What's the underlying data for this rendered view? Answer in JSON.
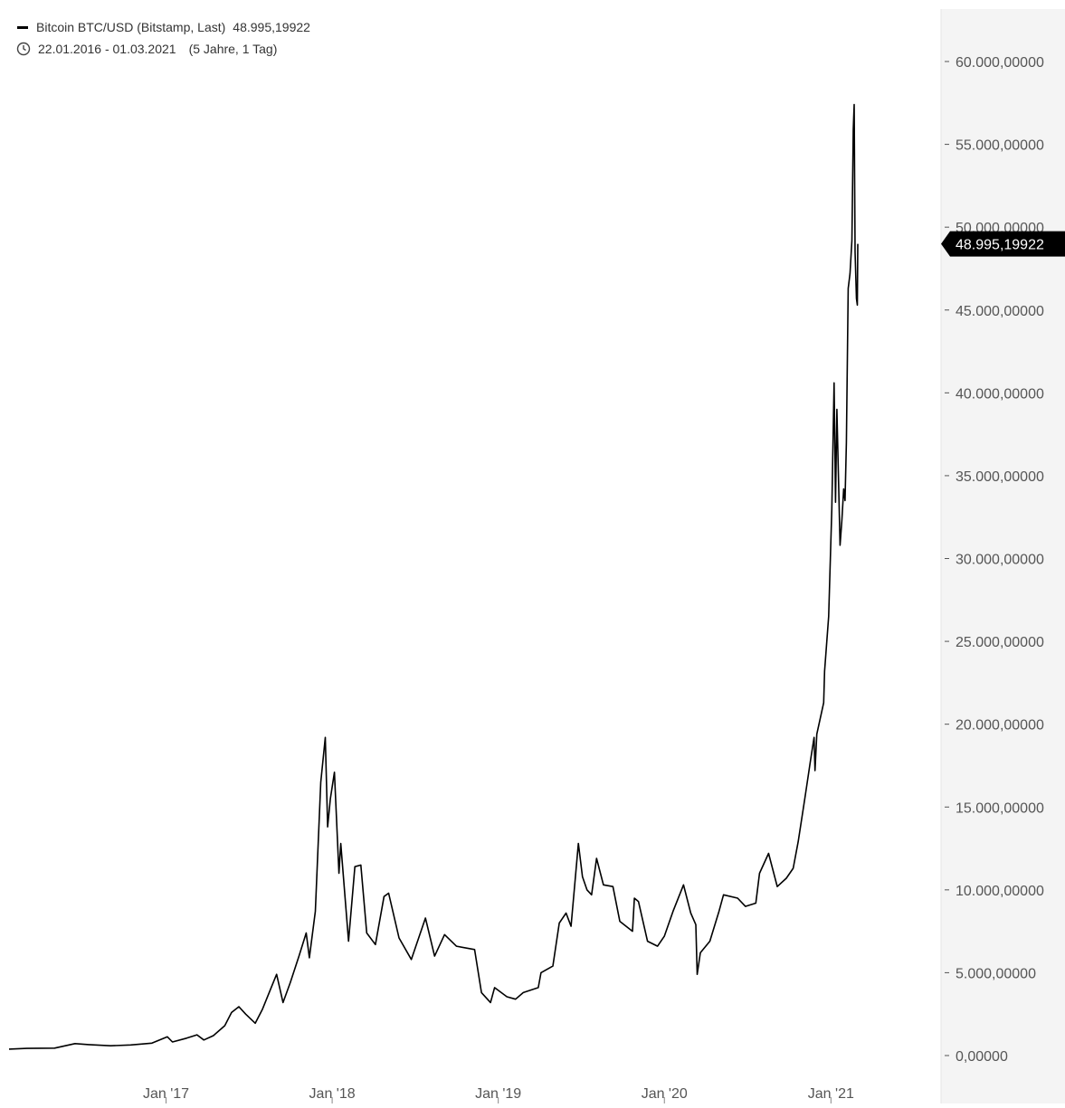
{
  "legend": {
    "series_label": "Bitcoin BTC/USD (Bitstamp, Last)",
    "series_value": "48.995,19922",
    "date_range": "22.01.2016 - 01.03.2021",
    "interval": "(5 Jahre, 1 Tag)"
  },
  "colors": {
    "line": "#000000",
    "axis_panel": "#f4f4f4",
    "tick_text": "#555555",
    "marker_bg": "#000000",
    "marker_text": "#ffffff"
  },
  "chart_data": {
    "type": "line",
    "title": "Bitcoin BTC/USD (Bitstamp, Last)",
    "xlabel": "",
    "ylabel": "",
    "xlim": [
      "2016-01-22",
      "2021-03-01"
    ],
    "ylim": [
      -3000,
      63000
    ],
    "y_ticks": [
      0,
      5000,
      10000,
      15000,
      20000,
      25000,
      30000,
      35000,
      40000,
      45000,
      50000,
      55000,
      60000
    ],
    "y_tick_labels": [
      "0,00000",
      "5.000,00000",
      "10.000,00000",
      "15.000,00000",
      "20.000,00000",
      "25.000,00000",
      "30.000,00000",
      "35.000,00000",
      "40.000,00000",
      "45.000,00000",
      "50.000,00000",
      "55.000,00000",
      "60.000,00000"
    ],
    "x_ticks": [
      "2017-01-01",
      "2018-01-01",
      "2019-01-01",
      "2020-01-01",
      "2021-01-01"
    ],
    "x_tick_labels": [
      "Jan '17",
      "Jan '18",
      "Jan '19",
      "Jan '20",
      "Jan '21"
    ],
    "last_value": 48995.19922,
    "last_value_label": "48.995,19922",
    "grid": false,
    "legend_position": "top-left",
    "y_axis_position": "right",
    "series": [
      {
        "name": "Bitcoin BTC/USD (Bitstamp, Last)",
        "points": [
          [
            "2016-01-22",
            390
          ],
          [
            "2016-03-01",
            430
          ],
          [
            "2016-05-01",
            450
          ],
          [
            "2016-06-15",
            720
          ],
          [
            "2016-07-15",
            660
          ],
          [
            "2016-09-01",
            590
          ],
          [
            "2016-10-15",
            640
          ],
          [
            "2016-12-01",
            750
          ],
          [
            "2017-01-04",
            1130
          ],
          [
            "2017-01-15",
            820
          ],
          [
            "2017-02-15",
            1050
          ],
          [
            "2017-03-10",
            1250
          ],
          [
            "2017-03-25",
            940
          ],
          [
            "2017-04-15",
            1200
          ],
          [
            "2017-05-10",
            1800
          ],
          [
            "2017-05-25",
            2600
          ],
          [
            "2017-06-10",
            2950
          ],
          [
            "2017-06-25",
            2500
          ],
          [
            "2017-07-16",
            1950
          ],
          [
            "2017-08-01",
            2800
          ],
          [
            "2017-08-20",
            4100
          ],
          [
            "2017-09-01",
            4900
          ],
          [
            "2017-09-15",
            3200
          ],
          [
            "2017-10-01",
            4400
          ],
          [
            "2017-10-20",
            6000
          ],
          [
            "2017-11-05",
            7400
          ],
          [
            "2017-11-12",
            5900
          ],
          [
            "2017-11-25",
            8700
          ],
          [
            "2017-12-07",
            16500
          ],
          [
            "2017-12-17",
            19200
          ],
          [
            "2017-12-22",
            13800
          ],
          [
            "2017-12-28",
            15500
          ],
          [
            "2018-01-06",
            17100
          ],
          [
            "2018-01-16",
            11000
          ],
          [
            "2018-01-20",
            12800
          ],
          [
            "2018-02-06",
            6900
          ],
          [
            "2018-02-20",
            11400
          ],
          [
            "2018-03-05",
            11500
          ],
          [
            "2018-03-18",
            7400
          ],
          [
            "2018-04-06",
            6700
          ],
          [
            "2018-04-25",
            9600
          ],
          [
            "2018-05-05",
            9800
          ],
          [
            "2018-05-28",
            7100
          ],
          [
            "2018-06-24",
            5800
          ],
          [
            "2018-07-25",
            8300
          ],
          [
            "2018-08-14",
            6000
          ],
          [
            "2018-09-05",
            7300
          ],
          [
            "2018-10-01",
            6600
          ],
          [
            "2018-11-10",
            6400
          ],
          [
            "2018-11-25",
            3800
          ],
          [
            "2018-12-15",
            3200
          ],
          [
            "2018-12-24",
            4100
          ],
          [
            "2019-01-20",
            3550
          ],
          [
            "2019-02-08",
            3400
          ],
          [
            "2019-02-25",
            3800
          ],
          [
            "2019-03-30",
            4100
          ],
          [
            "2019-04-05",
            5000
          ],
          [
            "2019-05-01",
            5400
          ],
          [
            "2019-05-15",
            8000
          ],
          [
            "2019-05-30",
            8600
          ],
          [
            "2019-06-10",
            7800
          ],
          [
            "2019-06-26",
            12800
          ],
          [
            "2019-07-05",
            10800
          ],
          [
            "2019-07-15",
            10000
          ],
          [
            "2019-07-25",
            9700
          ],
          [
            "2019-08-05",
            11900
          ],
          [
            "2019-08-20",
            10300
          ],
          [
            "2019-09-10",
            10200
          ],
          [
            "2019-09-25",
            8100
          ],
          [
            "2019-10-23",
            7500
          ],
          [
            "2019-10-27",
            9500
          ],
          [
            "2019-11-05",
            9300
          ],
          [
            "2019-11-25",
            6900
          ],
          [
            "2019-12-17",
            6600
          ],
          [
            "2020-01-01",
            7200
          ],
          [
            "2020-01-20",
            8700
          ],
          [
            "2020-02-12",
            10300
          ],
          [
            "2020-02-28",
            8600
          ],
          [
            "2020-03-10",
            7900
          ],
          [
            "2020-03-13",
            4900
          ],
          [
            "2020-03-20",
            6200
          ],
          [
            "2020-04-10",
            6900
          ],
          [
            "2020-04-30",
            8700
          ],
          [
            "2020-05-10",
            9700
          ],
          [
            "2020-06-10",
            9500
          ],
          [
            "2020-06-27",
            9000
          ],
          [
            "2020-07-20",
            9200
          ],
          [
            "2020-07-28",
            11000
          ],
          [
            "2020-08-17",
            12200
          ],
          [
            "2020-09-05",
            10200
          ],
          [
            "2020-09-25",
            10700
          ],
          [
            "2020-10-10",
            11300
          ],
          [
            "2020-10-21",
            12900
          ],
          [
            "2020-11-05",
            15600
          ],
          [
            "2020-11-17",
            17800
          ],
          [
            "2020-11-25",
            19200
          ],
          [
            "2020-11-27",
            17200
          ],
          [
            "2020-12-01",
            19400
          ],
          [
            "2020-12-16",
            21300
          ],
          [
            "2020-12-18",
            23200
          ],
          [
            "2020-12-27",
            26500
          ],
          [
            "2021-01-03",
            33000
          ],
          [
            "2021-01-08",
            40600
          ],
          [
            "2021-01-11",
            33400
          ],
          [
            "2021-01-14",
            39000
          ],
          [
            "2021-01-21",
            30800
          ],
          [
            "2021-01-25",
            32300
          ],
          [
            "2021-01-29",
            34200
          ],
          [
            "2021-02-01",
            33500
          ],
          [
            "2021-02-04",
            37000
          ],
          [
            "2021-02-08",
            46300
          ],
          [
            "2021-02-12",
            47200
          ],
          [
            "2021-02-16",
            49200
          ],
          [
            "2021-02-19",
            55900
          ],
          [
            "2021-02-21",
            57400
          ],
          [
            "2021-02-23",
            48500
          ],
          [
            "2021-02-26",
            45700
          ],
          [
            "2021-02-28",
            45300
          ],
          [
            "2021-03-01",
            48995.19922
          ]
        ]
      }
    ]
  }
}
